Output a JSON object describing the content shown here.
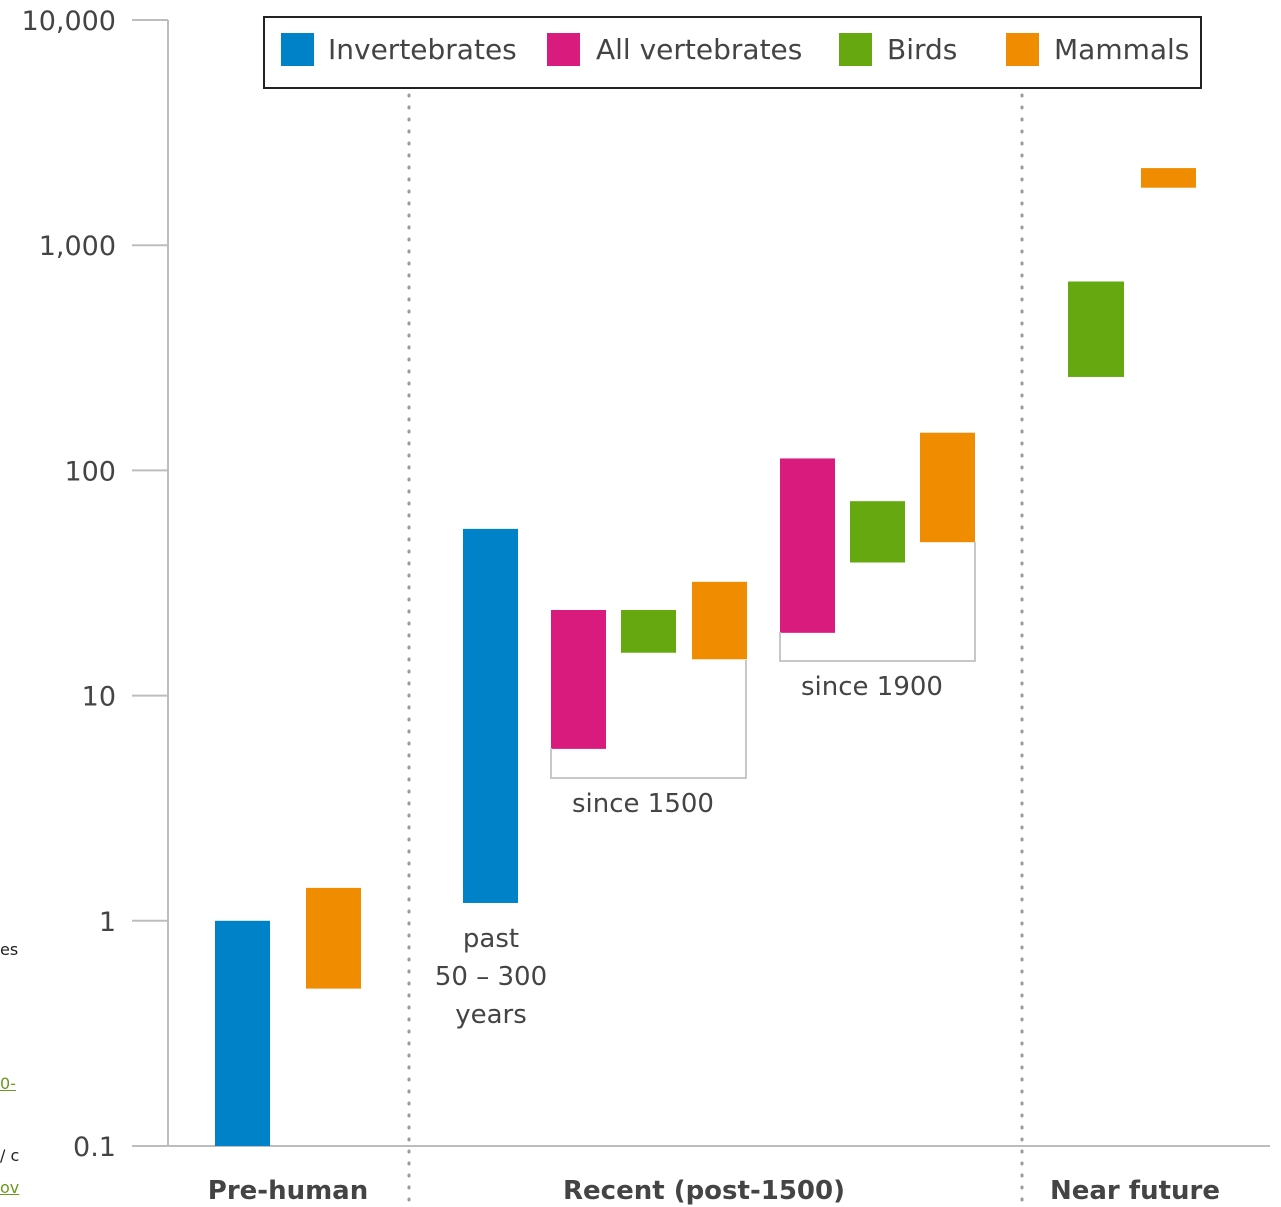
{
  "chart_data": {
    "type": "bar",
    "yscale": "log",
    "ylim": [
      0.1,
      10000
    ],
    "yticks": [
      {
        "value": 0.1,
        "label": "0.1"
      },
      {
        "value": 1,
        "label": "1"
      },
      {
        "value": 10,
        "label": "10"
      },
      {
        "value": 100,
        "label": "100"
      },
      {
        "value": 1000,
        "label": "1,000"
      },
      {
        "value": 10000,
        "label": "10,000"
      }
    ],
    "groups": [
      {
        "name": "Pre-human"
      },
      {
        "name": "Recent (post-1500)"
      },
      {
        "name": "Near future"
      }
    ],
    "legend": {
      "placement": "top",
      "entries": [
        {
          "name": "Invertebrates",
          "color": "#0082c8"
        },
        {
          "name": "All vertebrates",
          "color": "#d81b7d"
        },
        {
          "name": "Birds",
          "color": "#66a80f"
        },
        {
          "name": "Mammals",
          "color": "#ef8c00"
        }
      ]
    },
    "bars": [
      {
        "group": "Pre-human",
        "series": "Invertebrates",
        "low": 0.1,
        "high": 1.0
      },
      {
        "group": "Pre-human",
        "series": "Mammals",
        "low": 0.5,
        "high": 1.4
      },
      {
        "group": "Recent (post-1500)",
        "series": "Invertebrates",
        "low": 1.2,
        "high": 55
      },
      {
        "group": "Recent (post-1500)",
        "series": "All vertebrates",
        "low": 5.8,
        "high": 24
      },
      {
        "group": "Recent (post-1500)",
        "series": "Birds",
        "low": 15.5,
        "high": 24
      },
      {
        "group": "Recent (post-1500)",
        "series": "Mammals",
        "low": 14.5,
        "high": 32
      },
      {
        "group": "Recent (post-1500)",
        "series": "All vertebrates",
        "low": 19,
        "high": 113
      },
      {
        "group": "Recent (post-1500)",
        "series": "Birds",
        "low": 39,
        "high": 73
      },
      {
        "group": "Recent (post-1500)",
        "series": "Mammals",
        "low": 48,
        "high": 147
      },
      {
        "group": "Near future",
        "series": "Birds",
        "low": 260,
        "high": 690
      },
      {
        "group": "Near future",
        "series": "Mammals",
        "low": 1800,
        "high": 2200
      }
    ],
    "annotations": {
      "past_lines": [
        "past",
        "50 – 300",
        "years"
      ],
      "since_1500": "since 1500",
      "since_1900": "since 1900"
    }
  },
  "page_fragments": {
    "frag_a": "es",
    "frag_b": "0-",
    "frag_c": "/ c",
    "frag_d": "o​v"
  }
}
